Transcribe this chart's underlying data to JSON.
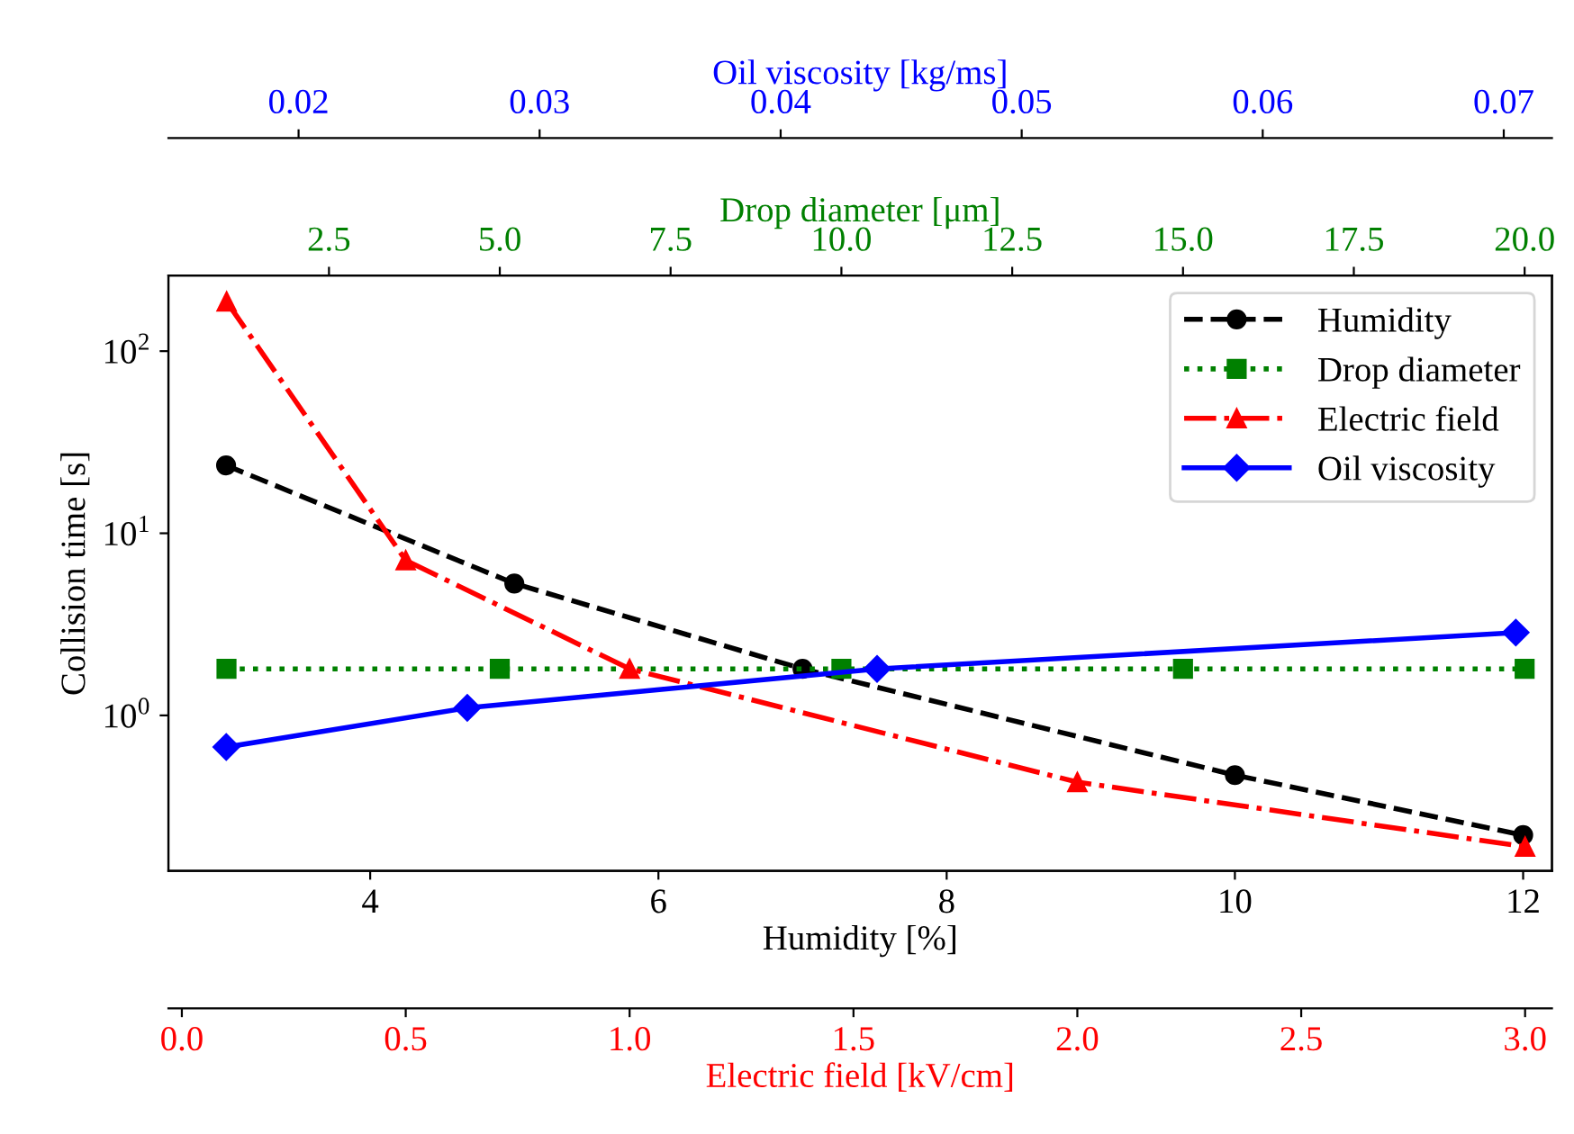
{
  "chart_data": [
    {
      "type": "line",
      "xlabel": "Humidity [%]",
      "x2label": "Drop diameter [μm]",
      "ylabel": "Collision time [s]",
      "log": "y",
      "legend": "top right",
      "grid": false,
      "xlim": [
        2.6,
        12.2
      ],
      "xticks": [
        4,
        6,
        8,
        10,
        12
      ],
      "x2lim": [
        0.15,
        20.4
      ],
      "x2ticks": [
        {
          "value": 2.5,
          "label": "2.5"
        },
        {
          "value": 5,
          "label": "5.0"
        },
        {
          "value": 7.5,
          "label": "7.5"
        },
        {
          "value": 10,
          "label": "10.0"
        },
        {
          "value": 12.5,
          "label": "12.5"
        },
        {
          "value": 15,
          "label": "15.0"
        },
        {
          "value": 17.5,
          "label": "17.5"
        },
        {
          "value": 20,
          "label": "20.0"
        }
      ],
      "ylim": [
        0.14,
        260
      ],
      "yticks": [
        {
          "value": 1,
          "label": "10$^{0}$"
        },
        {
          "value": 10,
          "label": "10$^{1}$"
        },
        {
          "value": 100,
          "label": "10$^{2}$"
        }
      ],
      "series": [
        {
          "name": "Humidity",
          "color": "#000000",
          "marker": "circle",
          "line_style": "dashed",
          "x": [
            3,
            5,
            7,
            10,
            12
          ],
          "values": [
            23.6,
            5.3,
            1.8,
            0.47,
            0.22
          ]
        },
        {
          "name": "Drop diameter",
          "color": "#008000",
          "marker": "square",
          "line_style": "dotted",
          "axis": "x2",
          "x": [
            1,
            5,
            10,
            15,
            20
          ],
          "values": [
            1.8,
            1.8,
            1.8,
            1.8,
            1.8
          ]
        }
      ]
    },
    {
      "type": "line",
      "xlabel": "Electric field [kV/cm]",
      "x2label": "Oil viscosity [kg/ms]",
      "log": "y",
      "tick_labels": "x",
      "grid": false,
      "legend": "top right",
      "xlim": [
        -0.03,
        3.06
      ],
      "xticks": [
        {
          "value": 0,
          "label": "0.0"
        },
        0.5,
        {
          "value": 1,
          "label": "1.0"
        },
        1.5,
        {
          "value": 2,
          "label": "2.0"
        },
        2.5,
        {
          "value": 3,
          "label": "3.0"
        }
      ],
      "x2lim": [
        0.0146,
        0.072
      ],
      "x2ticks": [
        0.02,
        0.03,
        0.04,
        0.05,
        0.06,
        0.07
      ],
      "ylim": [
        0.14,
        260
      ],
      "series": [
        {
          "name": "Electric field",
          "color": "#ff0000",
          "marker": "triangle",
          "line_style": "dashdot",
          "x": [
            0.1,
            0.5,
            1,
            2,
            3
          ],
          "values": [
            187,
            7.1,
            1.8,
            0.43,
            0.19
          ]
        },
        {
          "name": "Oil viscosity",
          "color": "#0000ff",
          "marker": "diamond",
          "line_style": "solid",
          "axis": "x2",
          "x": [
            0.017,
            0.027,
            0.044,
            0.0705
          ],
          "values": [
            0.67,
            1.1,
            1.8,
            2.85
          ]
        }
      ]
    }
  ]
}
